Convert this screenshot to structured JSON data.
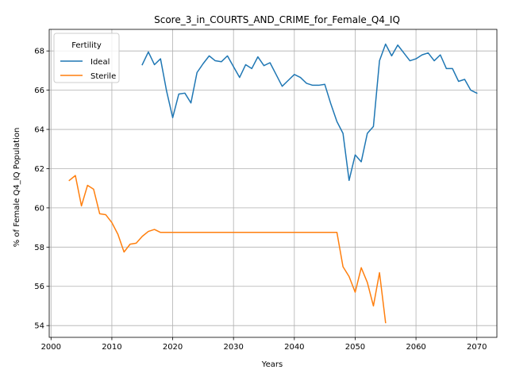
{
  "chart_data": {
    "type": "line",
    "title": "Score_3_in_COURTS_AND_CRIME_for_Female_Q4_IQ",
    "xlabel": "Years",
    "ylabel": "% of Female Q4_IQ Population",
    "xlim": [
      1999.7,
      2073.3
    ],
    "ylim": [
      53.4,
      69.1
    ],
    "xticks": [
      2000,
      2010,
      2020,
      2030,
      2040,
      2050,
      2060,
      2070
    ],
    "yticks": [
      54,
      56,
      58,
      60,
      62,
      64,
      66,
      68
    ],
    "grid": true,
    "legend": {
      "title": "Fertility",
      "placement": "top-left"
    },
    "series": [
      {
        "name": "Ideal",
        "color": "#1f77b4",
        "x": [
          2015,
          2016,
          2017,
          2018,
          2019,
          2020,
          2021,
          2022,
          2023,
          2024,
          2025,
          2026,
          2027,
          2028,
          2029,
          2030,
          2031,
          2032,
          2033,
          2034,
          2035,
          2036,
          2037,
          2038,
          2039,
          2040,
          2041,
          2042,
          2043,
          2044,
          2045,
          2046,
          2047,
          2048,
          2049,
          2050,
          2051,
          2052,
          2053,
          2054,
          2055,
          2056,
          2057,
          2058,
          2059,
          2060,
          2061,
          2062,
          2063,
          2064,
          2065,
          2066,
          2067,
          2068,
          2069,
          2070
        ],
        "y": [
          67.3,
          67.95,
          67.3,
          67.6,
          65.95,
          64.6,
          65.8,
          65.85,
          65.35,
          66.9,
          67.35,
          67.75,
          67.5,
          67.45,
          67.75,
          67.2,
          66.65,
          67.3,
          67.1,
          67.7,
          67.25,
          67.4,
          66.8,
          66.2,
          66.5,
          66.8,
          66.65,
          66.35,
          66.25,
          66.25,
          66.3,
          65.3,
          64.4,
          63.8,
          61.4,
          62.7,
          62.35,
          63.8,
          64.15,
          67.5,
          68.35,
          67.75,
          68.3,
          67.9,
          67.5,
          67.6,
          67.8,
          67.9,
          67.5,
          67.8,
          67.1,
          67.1,
          66.45,
          66.55,
          66.0,
          65.85
        ]
      },
      {
        "name": "Sterile",
        "color": "#ff7f0e",
        "x": [
          2003,
          2004,
          2005,
          2006,
          2007,
          2008,
          2009,
          2010,
          2011,
          2012,
          2013,
          2014,
          2015,
          2016,
          2017,
          2018,
          2019,
          2020,
          2021,
          2022,
          2023,
          2024,
          2025,
          2026,
          2027,
          2028,
          2029,
          2030,
          2031,
          2032,
          2033,
          2034,
          2035,
          2036,
          2037,
          2038,
          2039,
          2040,
          2041,
          2042,
          2043,
          2044,
          2045,
          2046,
          2047,
          2048,
          2049,
          2050,
          2051,
          2052,
          2053,
          2054,
          2055
        ],
        "y": [
          61.4,
          61.65,
          60.1,
          61.15,
          60.95,
          59.7,
          59.65,
          59.25,
          58.65,
          57.75,
          58.15,
          58.2,
          58.55,
          58.8,
          58.9,
          58.75,
          58.75,
          58.75,
          58.75,
          58.75,
          58.75,
          58.75,
          58.75,
          58.75,
          58.75,
          58.75,
          58.75,
          58.75,
          58.75,
          58.75,
          58.75,
          58.75,
          58.75,
          58.75,
          58.75,
          58.75,
          58.75,
          58.75,
          58.75,
          58.75,
          58.75,
          58.75,
          58.75,
          58.75,
          58.75,
          57.0,
          56.5,
          55.7,
          56.95,
          56.2,
          55.0,
          56.7,
          54.15
        ]
      }
    ]
  }
}
